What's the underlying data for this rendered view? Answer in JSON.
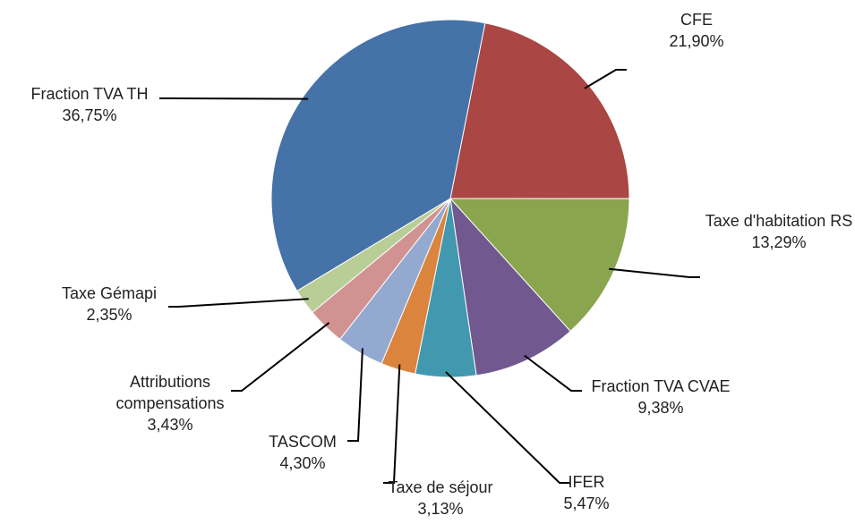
{
  "chart_data": {
    "type": "pie",
    "categories": [
      "CFE",
      "Taxe d'habitation RS",
      "Fraction TVA CVAE",
      "IFER",
      "Taxe de séjour",
      "TASCOM",
      "Attributions compensations",
      "Taxe Gémapi",
      "Fraction TVA TH"
    ],
    "values": [
      21.9,
      13.29,
      9.38,
      5.47,
      3.13,
      4.3,
      3.43,
      2.35,
      36.75
    ],
    "value_labels": [
      "21,90%",
      "13,29%",
      "9,38%",
      "5,47%",
      "3,13%",
      "4,30%",
      "3,43%",
      "2,35%",
      "36,75%"
    ],
    "colors": [
      "#aa4643",
      "#89a54e",
      "#71588f",
      "#4198af",
      "#db843d",
      "#93a9cf",
      "#d19392",
      "#b9cd96",
      "#4572a7"
    ]
  }
}
